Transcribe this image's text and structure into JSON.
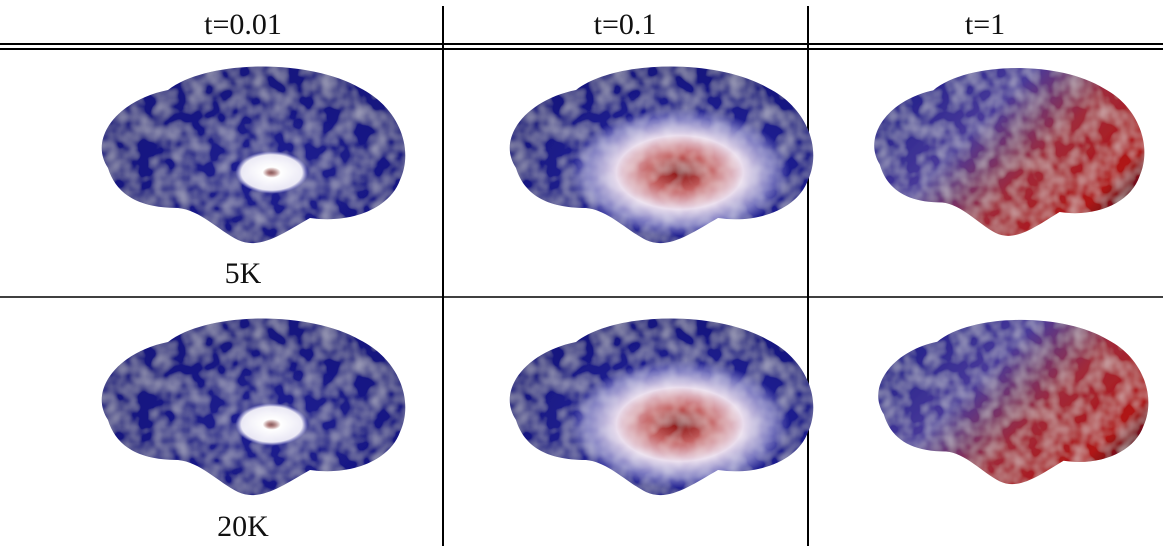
{
  "header": {
    "columns": [
      "t=0.01",
      "t=0.1",
      "t=1"
    ]
  },
  "rows": [
    {
      "label": "5K"
    },
    {
      "label": "20K"
    }
  ]
}
